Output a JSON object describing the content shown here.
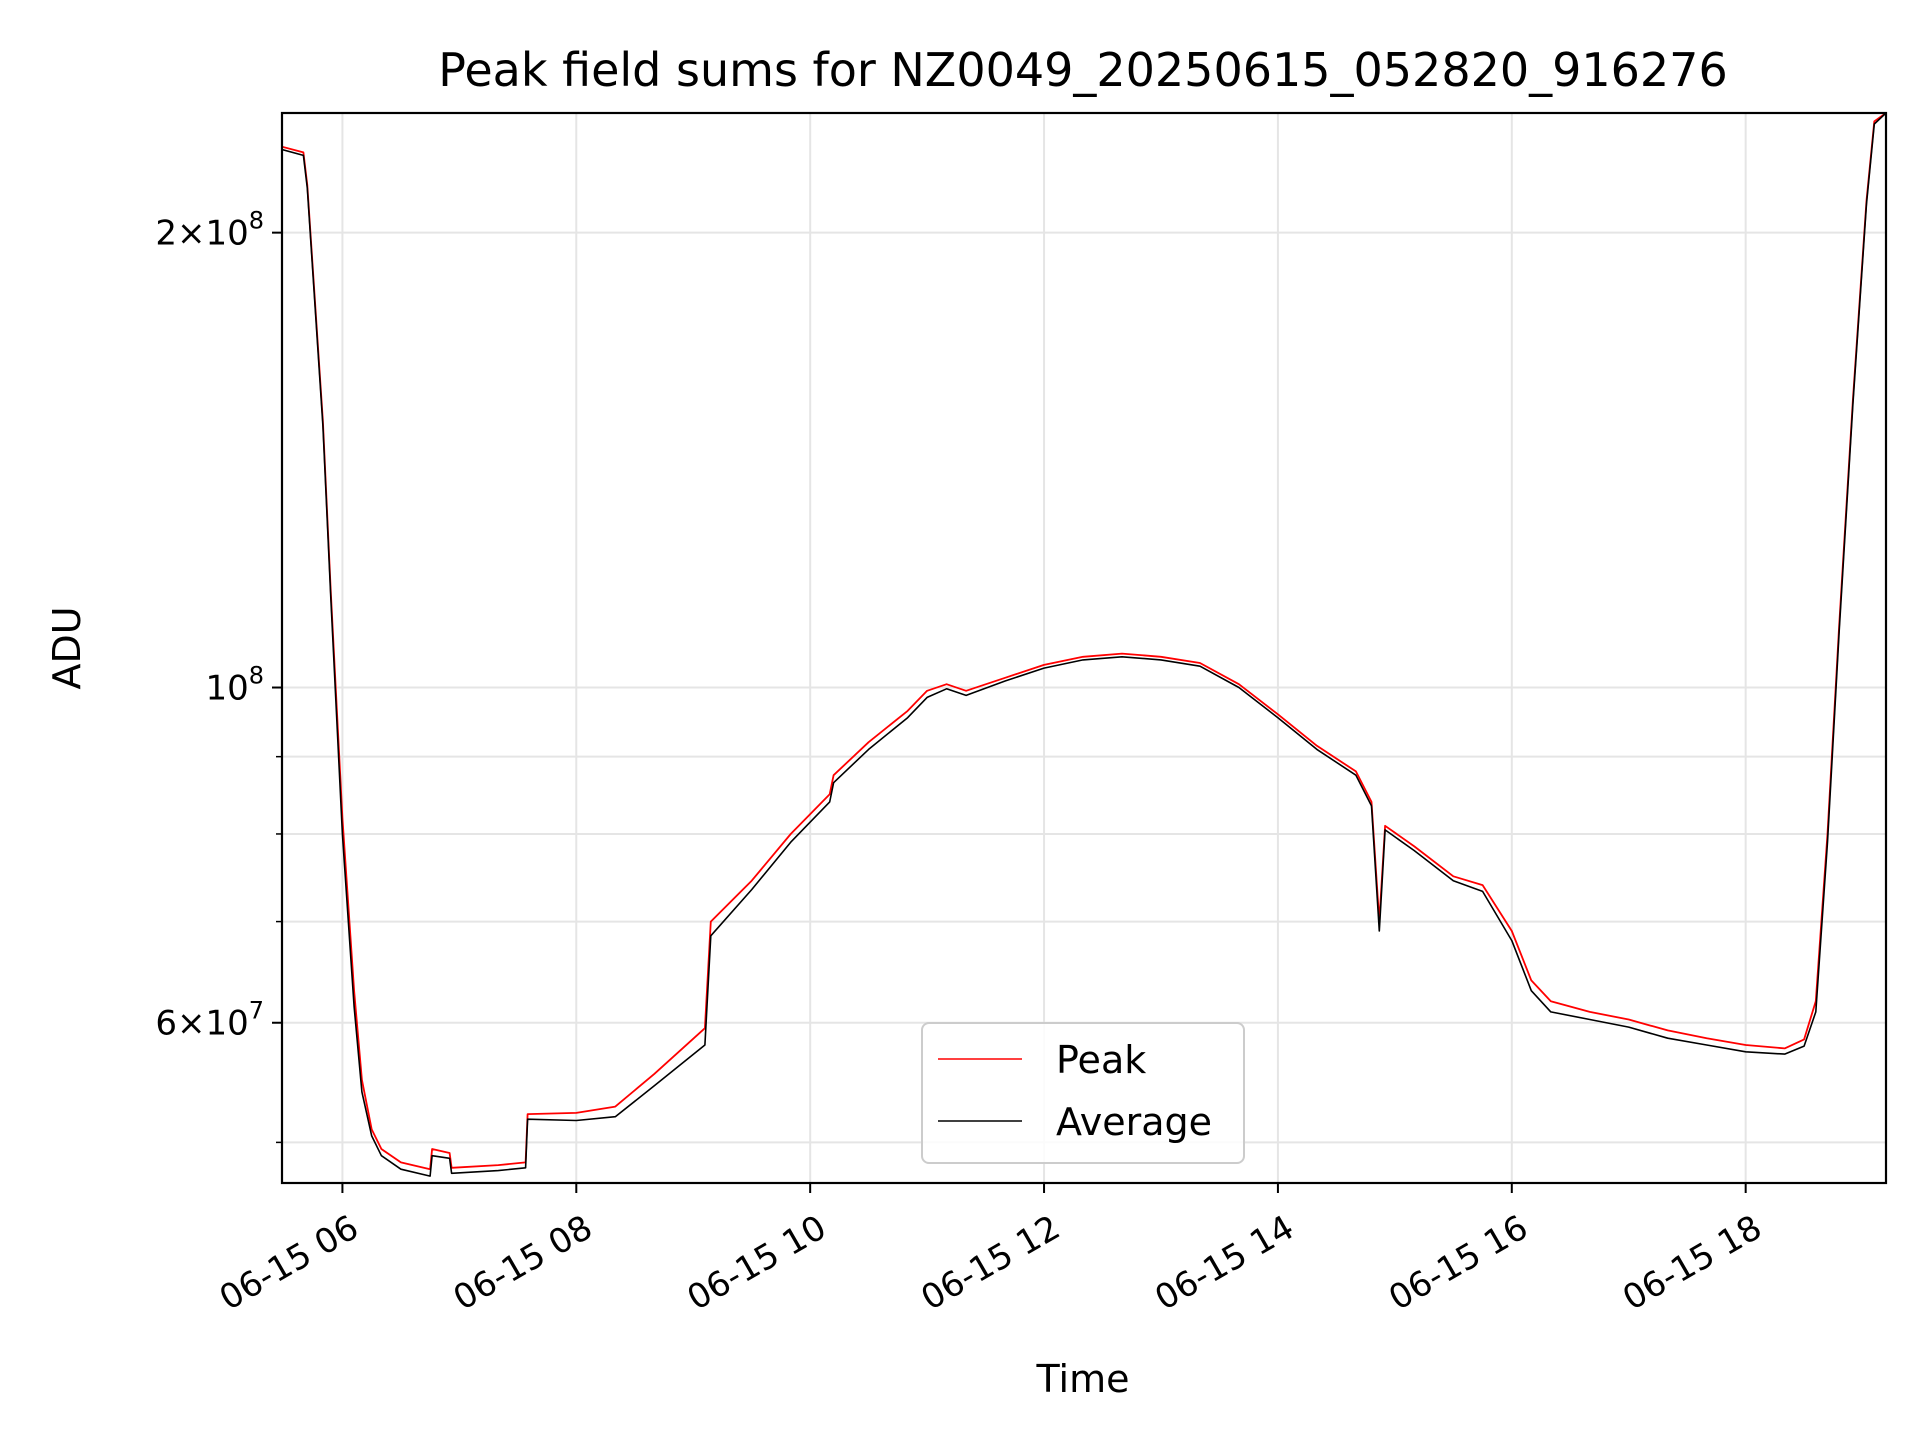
{
  "chart_data": {
    "type": "line",
    "title": "Peak field sums for NZ0049_20250615_052820_916276",
    "xlabel": "Time",
    "ylabel": "ADU",
    "y_scale": "log",
    "ylim": [
      47000000,
      240000000
    ],
    "xlim": [
      "06-15 05:29",
      "06-15 19:12"
    ],
    "grid": true,
    "legend_position": "lower center",
    "x_ticks": [
      {
        "label": "06-15 06",
        "time": "06-15 06:00"
      },
      {
        "label": "06-15 08",
        "time": "06-15 08:00"
      },
      {
        "label": "06-15 10",
        "time": "06-15 10:00"
      },
      {
        "label": "06-15 12",
        "time": "06-15 12:00"
      },
      {
        "label": "06-15 14",
        "time": "06-15 14:00"
      },
      {
        "label": "06-15 16",
        "time": "06-15 16:00"
      },
      {
        "label": "06-15 18",
        "time": "06-15 18:00"
      }
    ],
    "y_major_ticks": [
      {
        "value": 60000000,
        "mant": "6",
        "exp": "7"
      },
      {
        "value": 100000000,
        "mant": "",
        "exp": "8"
      },
      {
        "value": 200000000,
        "mant": "2",
        "exp": "8"
      }
    ],
    "y_minor_ticks": [
      50000000,
      70000000,
      80000000,
      90000000
    ],
    "series": [
      {
        "name": "Peak",
        "color": "#ff0000",
        "points": [
          [
            "06-15 05:29",
            228000000
          ],
          [
            "06-15 05:40",
            226000000
          ],
          [
            "06-15 05:42",
            215000000
          ],
          [
            "06-15 05:50",
            150000000
          ],
          [
            "06-15 05:54",
            116000000
          ],
          [
            "06-15 06:00",
            82000000
          ],
          [
            "06-15 06:06",
            63000000
          ],
          [
            "06-15 06:10",
            55000000
          ],
          [
            "06-15 06:15",
            51000000
          ],
          [
            "06-15 06:20",
            49500000
          ],
          [
            "06-15 06:30",
            48500000
          ],
          [
            "06-15 06:45",
            48000000
          ],
          [
            "06-15 06:46",
            49500000
          ],
          [
            "06-15 06:55",
            49200000
          ],
          [
            "06-15 06:56",
            48100000
          ],
          [
            "06-15 07:20",
            48300000
          ],
          [
            "06-15 07:34",
            48500000
          ],
          [
            "06-15 07:35",
            52200000
          ],
          [
            "06-15 08:00",
            52300000
          ],
          [
            "06-15 08:20",
            52800000
          ],
          [
            "06-15 08:40",
            55500000
          ],
          [
            "06-15 09:06",
            59500000
          ],
          [
            "06-15 09:09",
            70000000
          ],
          [
            "06-15 09:30",
            74500000
          ],
          [
            "06-15 09:50",
            80000000
          ],
          [
            "06-15 10:10",
            85000000
          ],
          [
            "06-15 10:12",
            87500000
          ],
          [
            "06-15 10:30",
            92000000
          ],
          [
            "06-15 10:50",
            96500000
          ],
          [
            "06-15 11:00",
            99500000
          ],
          [
            "06-15 11:10",
            100500000
          ],
          [
            "06-15 11:20",
            99500000
          ],
          [
            "06-15 11:40",
            101500000
          ],
          [
            "06-15 12:00",
            103500000
          ],
          [
            "06-15 12:20",
            104800000
          ],
          [
            "06-15 12:40",
            105300000
          ],
          [
            "06-15 13:00",
            104800000
          ],
          [
            "06-15 13:20",
            103800000
          ],
          [
            "06-15 13:40",
            100500000
          ],
          [
            "06-15 14:00",
            96000000
          ],
          [
            "06-15 14:20",
            91500000
          ],
          [
            "06-15 14:40",
            88000000
          ],
          [
            "06-15 14:48",
            84000000
          ],
          [
            "06-15 14:52",
            70000000
          ],
          [
            "06-15 14:55",
            81000000
          ],
          [
            "06-15 15:10",
            78500000
          ],
          [
            "06-15 15:30",
            75000000
          ],
          [
            "06-15 15:45",
            74000000
          ],
          [
            "06-15 16:00",
            69000000
          ],
          [
            "06-15 16:10",
            64000000
          ],
          [
            "06-15 16:20",
            62000000
          ],
          [
            "06-15 16:40",
            61000000
          ],
          [
            "06-15 17:00",
            60300000
          ],
          [
            "06-15 17:20",
            59300000
          ],
          [
            "06-15 17:40",
            58600000
          ],
          [
            "06-15 18:00",
            58000000
          ],
          [
            "06-15 18:20",
            57700000
          ],
          [
            "06-15 18:30",
            58500000
          ],
          [
            "06-15 18:36",
            62000000
          ],
          [
            "06-15 18:42",
            80000000
          ],
          [
            "06-15 18:48",
            110000000
          ],
          [
            "06-15 18:55",
            155000000
          ],
          [
            "06-15 19:02",
            210000000
          ],
          [
            "06-15 19:06",
            237000000
          ],
          [
            "06-15 19:12",
            240000000
          ]
        ]
      },
      {
        "name": "Average",
        "color": "#000000",
        "points": [
          [
            "06-15 05:29",
            227000000
          ],
          [
            "06-15 05:40",
            225000000
          ],
          [
            "06-15 05:42",
            214000000
          ],
          [
            "06-15 05:50",
            149000000
          ],
          [
            "06-15 05:54",
            115000000
          ],
          [
            "06-15 06:00",
            80000000
          ],
          [
            "06-15 06:06",
            61500000
          ],
          [
            "06-15 06:10",
            54000000
          ],
          [
            "06-15 06:15",
            50500000
          ],
          [
            "06-15 06:20",
            49000000
          ],
          [
            "06-15 06:30",
            48000000
          ],
          [
            "06-15 06:45",
            47500000
          ],
          [
            "06-15 06:46",
            49000000
          ],
          [
            "06-15 06:55",
            48800000
          ],
          [
            "06-15 06:56",
            47700000
          ],
          [
            "06-15 07:20",
            47900000
          ],
          [
            "06-15 07:34",
            48100000
          ],
          [
            "06-15 07:35",
            51800000
          ],
          [
            "06-15 08:00",
            51700000
          ],
          [
            "06-15 08:20",
            52000000
          ],
          [
            "06-15 08:40",
            54500000
          ],
          [
            "06-15 09:06",
            58000000
          ],
          [
            "06-15 09:09",
            68500000
          ],
          [
            "06-15 09:30",
            73500000
          ],
          [
            "06-15 09:50",
            79000000
          ],
          [
            "06-15 10:10",
            84000000
          ],
          [
            "06-15 10:12",
            86500000
          ],
          [
            "06-15 10:30",
            91000000
          ],
          [
            "06-15 10:50",
            95500000
          ],
          [
            "06-15 11:00",
            98500000
          ],
          [
            "06-15 11:10",
            99800000
          ],
          [
            "06-15 11:20",
            98800000
          ],
          [
            "06-15 11:40",
            101000000
          ],
          [
            "06-15 12:00",
            103000000
          ],
          [
            "06-15 12:20",
            104300000
          ],
          [
            "06-15 12:40",
            104800000
          ],
          [
            "06-15 13:00",
            104300000
          ],
          [
            "06-15 13:20",
            103300000
          ],
          [
            "06-15 13:40",
            100000000
          ],
          [
            "06-15 14:00",
            95500000
          ],
          [
            "06-15 14:20",
            91000000
          ],
          [
            "06-15 14:40",
            87500000
          ],
          [
            "06-15 14:48",
            83500000
          ],
          [
            "06-15 14:52",
            69000000
          ],
          [
            "06-15 14:55",
            80500000
          ],
          [
            "06-15 15:10",
            78000000
          ],
          [
            "06-15 15:30",
            74500000
          ],
          [
            "06-15 15:45",
            73300000
          ],
          [
            "06-15 16:00",
            68000000
          ],
          [
            "06-15 16:10",
            63000000
          ],
          [
            "06-15 16:20",
            61000000
          ],
          [
            "06-15 16:40",
            60300000
          ],
          [
            "06-15 17:00",
            59600000
          ],
          [
            "06-15 17:20",
            58600000
          ],
          [
            "06-15 17:40",
            58000000
          ],
          [
            "06-15 18:00",
            57400000
          ],
          [
            "06-15 18:20",
            57200000
          ],
          [
            "06-15 18:30",
            57900000
          ],
          [
            "06-15 18:36",
            61000000
          ],
          [
            "06-15 18:42",
            79000000
          ],
          [
            "06-15 18:48",
            109000000
          ],
          [
            "06-15 18:55",
            154000000
          ],
          [
            "06-15 19:02",
            209000000
          ],
          [
            "06-15 19:06",
            236000000
          ],
          [
            "06-15 19:12",
            240000000
          ]
        ]
      }
    ]
  }
}
